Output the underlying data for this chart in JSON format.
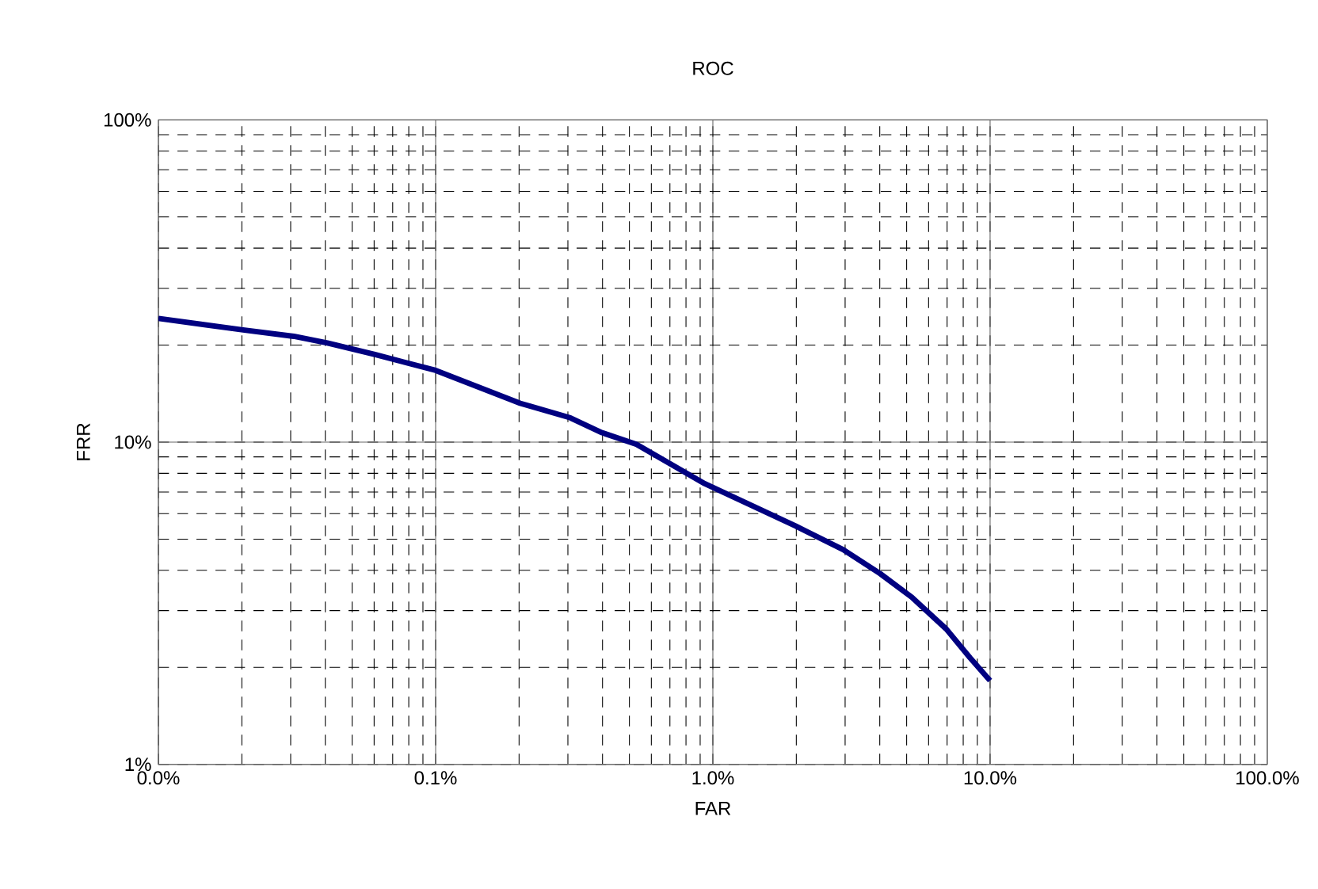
{
  "chart_data": {
    "type": "line",
    "title": "ROC",
    "xlabel": "FAR",
    "ylabel": "FRR",
    "log": "xy",
    "grid": true,
    "marker": "none",
    "line_style": "solid",
    "xlim": [
      0.01,
      100
    ],
    "ylim": [
      1,
      100
    ],
    "xticks": [
      {
        "value": 0.01,
        "label": "0.0%"
      },
      {
        "value": 0.1,
        "label": "0.1%"
      },
      {
        "value": 1,
        "label": "1.0%"
      },
      {
        "value": 10,
        "label": "10.0%"
      },
      {
        "value": 100,
        "label": "100.0%"
      }
    ],
    "yticks": [
      {
        "value": 1,
        "label": "1%"
      },
      {
        "value": 10,
        "label": "10%"
      },
      {
        "value": 100,
        "label": "100%"
      }
    ],
    "series": [
      {
        "color": "#000080",
        "x": [
          0.01,
          0.0202,
          0.0308,
          0.0407,
          0.0604,
          0.1,
          0.2018,
          0.306,
          0.398,
          0.53,
          0.935,
          1.99,
          2.95,
          4.01,
          5.22,
          6.95,
          8.47,
          10.0
        ],
        "values": [
          24.2,
          22.3,
          21.3,
          20.3,
          18.7,
          16.7,
          13.2,
          11.9,
          10.7,
          9.85,
          7.43,
          5.49,
          4.64,
          3.91,
          3.3,
          2.63,
          2.14,
          1.82
        ]
      }
    ]
  }
}
